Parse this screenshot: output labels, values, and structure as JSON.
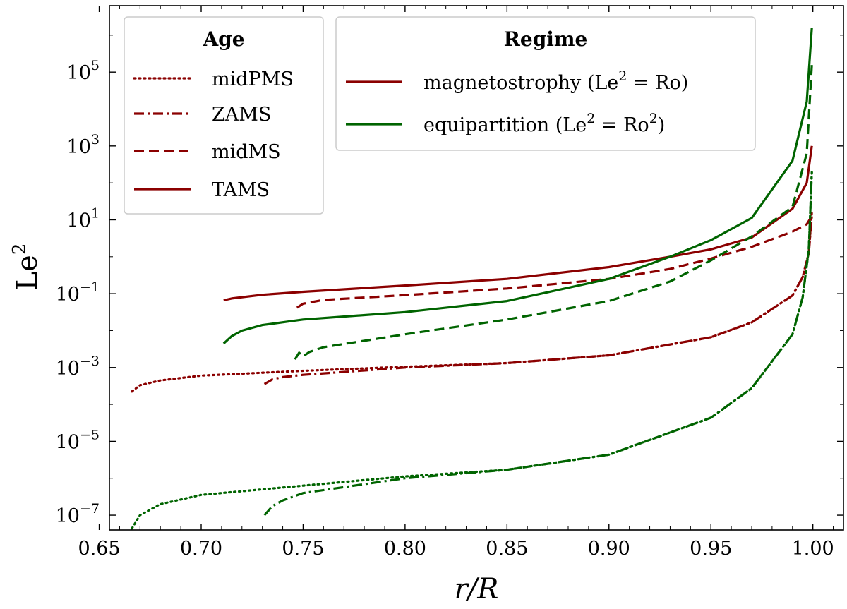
{
  "chart_data": {
    "type": "line",
    "xlabel": "r/R",
    "ylabel": "Le",
    "ylabel_sup": "2",
    "xlim": [
      0.655,
      1.015
    ],
    "ylim_log10": [
      -7.4,
      6.8
    ],
    "yscale": "log",
    "x_ticks": [
      0.65,
      0.7,
      0.75,
      0.8,
      0.85,
      0.9,
      0.95,
      1.0
    ],
    "x_tick_labels": [
      "0.65",
      "0.70",
      "0.75",
      "0.80",
      "0.85",
      "0.90",
      "0.95",
      "1.00"
    ],
    "y_ticks": [
      {
        "exp": 5,
        "base": "10",
        "label": "5"
      },
      {
        "exp": 3,
        "base": "10",
        "label": "3"
      },
      {
        "exp": 1,
        "base": "10",
        "label": "1"
      },
      {
        "exp": -1,
        "base": "10",
        "label": "−1"
      },
      {
        "exp": -3,
        "base": "10",
        "label": "−3"
      },
      {
        "exp": -5,
        "base": "10",
        "label": "−5"
      },
      {
        "exp": -7,
        "base": "10",
        "label": "−7"
      }
    ],
    "colors": {
      "magnetostrophy": "#8b0000",
      "equipartition": "#006400"
    },
    "legend_age": {
      "title": "Age",
      "entries": [
        {
          "label": "midPMS",
          "dash": "dotted"
        },
        {
          "label": "ZAMS",
          "dash": "dashdot"
        },
        {
          "label": "midMS",
          "dash": "dashed"
        },
        {
          "label": "TAMS",
          "dash": "solid"
        }
      ]
    },
    "legend_regime": {
      "title": "Regime",
      "entries": [
        {
          "label": "magnetostrophy (Le",
          "sup": "2",
          "label2": " = Ro)",
          "color": "#8b0000"
        },
        {
          "label": "equipartition (Le",
          "sup": "2",
          "label2": " = Ro",
          "sup2": "2",
          "label3": ")",
          "color": "#006400"
        }
      ]
    },
    "series": [
      {
        "name": "magnetostrophy midPMS",
        "regime": "magnetostrophy",
        "age": "midPMS",
        "dash": "dotted",
        "color": "#8b0000",
        "x": [
          0.666,
          0.67,
          0.68,
          0.7,
          0.75,
          0.8,
          0.85,
          0.9,
          0.95,
          0.97,
          0.99,
          0.995,
          0.998,
          0.9995
        ],
        "log_y": [
          -3.65,
          -3.48,
          -3.35,
          -3.22,
          -3.09,
          -2.98,
          -2.88,
          -2.67,
          -2.18,
          -1.78,
          -1.05,
          -0.55,
          0.1,
          1.2
        ]
      },
      {
        "name": "magnetostrophy ZAMS",
        "regime": "magnetostrophy",
        "age": "ZAMS",
        "dash": "dashdot",
        "color": "#8b0000",
        "x": [
          0.731,
          0.735,
          0.74,
          0.75,
          0.8,
          0.85,
          0.9,
          0.95,
          0.97,
          0.99,
          0.995,
          0.998,
          0.9995
        ],
        "log_y": [
          -3.45,
          -3.32,
          -3.26,
          -3.2,
          -3.0,
          -2.88,
          -2.67,
          -2.18,
          -1.78,
          -1.05,
          -0.55,
          0.1,
          1.1
        ]
      },
      {
        "name": "magnetostrophy midMS",
        "regime": "magnetostrophy",
        "age": "midMS",
        "dash": "dashed",
        "color": "#8b0000",
        "x": [
          0.747,
          0.75,
          0.76,
          0.8,
          0.85,
          0.9,
          0.93,
          0.95,
          0.97,
          0.99,
          0.997,
          0.9995
        ],
        "log_y": [
          -1.38,
          -1.27,
          -1.17,
          -1.04,
          -0.86,
          -0.6,
          -0.33,
          -0.05,
          0.27,
          0.68,
          0.88,
          1.1
        ]
      },
      {
        "name": "magnetostrophy TAMS",
        "regime": "magnetostrophy",
        "age": "TAMS",
        "dash": "solid",
        "color": "#8b0000",
        "x": [
          0.711,
          0.715,
          0.73,
          0.75,
          0.8,
          0.85,
          0.9,
          0.93,
          0.95,
          0.97,
          0.99,
          0.997,
          0.9995
        ],
        "log_y": [
          -1.18,
          -1.13,
          -1.03,
          -0.95,
          -0.78,
          -0.6,
          -0.28,
          0.0,
          0.2,
          0.52,
          1.3,
          2.0,
          3.0
        ]
      },
      {
        "name": "equipartition midPMS",
        "regime": "equipartition",
        "age": "midPMS",
        "dash": "dotted",
        "color": "#006400",
        "x": [
          0.666,
          0.67,
          0.68,
          0.7,
          0.75,
          0.8,
          0.85,
          0.9,
          0.95,
          0.97,
          0.99,
          0.995,
          0.998,
          0.9995
        ],
        "log_y": [
          -7.36,
          -7.0,
          -6.7,
          -6.45,
          -6.2,
          -5.95,
          -5.77,
          -5.36,
          -4.36,
          -3.56,
          -2.1,
          -1.1,
          0.2,
          2.3
        ]
      },
      {
        "name": "equipartition ZAMS",
        "regime": "equipartition",
        "age": "ZAMS",
        "dash": "dashdot",
        "color": "#006400",
        "x": [
          0.731,
          0.735,
          0.74,
          0.75,
          0.8,
          0.85,
          0.9,
          0.95,
          0.97,
          0.99,
          0.995,
          0.998,
          0.9995
        ],
        "log_y": [
          -7.0,
          -6.75,
          -6.6,
          -6.4,
          -6.0,
          -5.77,
          -5.36,
          -4.36,
          -3.56,
          -2.1,
          -1.1,
          0.2,
          2.3
        ]
      },
      {
        "name": "equipartition midMS",
        "regime": "equipartition",
        "age": "midMS",
        "dash": "dashed",
        "color": "#006400",
        "x": [
          0.746,
          0.748,
          0.75,
          0.753,
          0.76,
          0.8,
          0.85,
          0.9,
          0.93,
          0.95,
          0.97,
          0.99,
          0.997,
          0.9995
        ],
        "log_y": [
          -2.78,
          -2.6,
          -2.7,
          -2.58,
          -2.45,
          -2.1,
          -1.7,
          -1.2,
          -0.67,
          -0.1,
          0.55,
          1.35,
          2.8,
          5.2
        ]
      },
      {
        "name": "equipartition TAMS",
        "regime": "equipartition",
        "age": "TAMS",
        "dash": "solid",
        "color": "#006400",
        "x": [
          0.711,
          0.715,
          0.72,
          0.73,
          0.75,
          0.8,
          0.85,
          0.9,
          0.93,
          0.95,
          0.97,
          0.99,
          0.997,
          0.9995
        ],
        "log_y": [
          -2.35,
          -2.15,
          -2.0,
          -1.85,
          -1.7,
          -1.5,
          -1.2,
          -0.6,
          0.0,
          0.45,
          1.05,
          2.6,
          4.2,
          6.2
        ]
      }
    ]
  }
}
